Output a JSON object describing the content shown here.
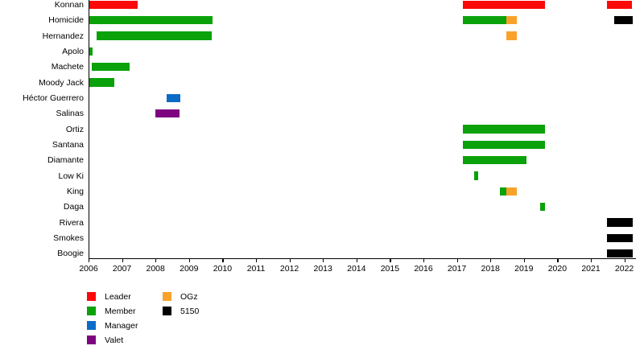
{
  "chart_data": {
    "type": "timeline",
    "title": "",
    "x_axis": {
      "start": 2006,
      "end": 2022,
      "tick_interval": 1,
      "tick_labels": [
        "2006",
        "2007",
        "2008",
        "2009",
        "2010",
        "2011",
        "2012",
        "2013",
        "2014",
        "2015",
        "2016",
        "2017",
        "2018",
        "2019",
        "2020",
        "2021",
        "2022"
      ]
    },
    "roles": {
      "leader": {
        "label": "Leader",
        "color": "#FB0909"
      },
      "member": {
        "label": "Member",
        "color": "#0AA10A"
      },
      "manager": {
        "label": "Manager",
        "color": "#0B6BC7"
      },
      "valet": {
        "label": "Valet",
        "color": "#7D0680"
      },
      "ogz": {
        "label": "OGz",
        "color": "#F9A22B"
      },
      "s5150": {
        "label": "5150",
        "color": "#000000"
      }
    },
    "legend_columns": [
      [
        "leader",
        "member",
        "manager",
        "valet"
      ],
      [
        "ogz",
        "s5150"
      ]
    ],
    "rows": [
      {
        "label": "Konnan",
        "segments": [
          {
            "role": "leader",
            "start": 2006.02,
            "end": 2007.47
          },
          {
            "role": "leader",
            "start": 2017.18,
            "end": 2019.63
          },
          {
            "role": "leader",
            "start": 2021.48,
            "end": 2022.22
          }
        ]
      },
      {
        "label": "Homicide",
        "segments": [
          {
            "role": "member",
            "start": 2006.02,
            "end": 2009.7
          },
          {
            "role": "member",
            "start": 2017.18,
            "end": 2018.48
          },
          {
            "role": "ogz",
            "start": 2018.48,
            "end": 2018.78
          },
          {
            "role": "s5150",
            "start": 2021.7,
            "end": 2022.25
          }
        ]
      },
      {
        "label": "Hernandez",
        "segments": [
          {
            "role": "member",
            "start": 2006.24,
            "end": 2009.68
          },
          {
            "role": "ogz",
            "start": 2018.48,
            "end": 2018.78
          }
        ]
      },
      {
        "label": "Apolo",
        "segments": [
          {
            "role": "member",
            "start": 2006.02,
            "end": 2006.13
          }
        ]
      },
      {
        "label": "Machete",
        "segments": [
          {
            "role": "member",
            "start": 2006.1,
            "end": 2007.23
          }
        ]
      },
      {
        "label": "Moody Jack",
        "segments": [
          {
            "role": "member",
            "start": 2006.02,
            "end": 2006.77
          }
        ]
      },
      {
        "label": "Héctor Guerrero",
        "segments": [
          {
            "role": "manager",
            "start": 2008.32,
            "end": 2008.74
          }
        ]
      },
      {
        "label": "Salinas",
        "segments": [
          {
            "role": "valet",
            "start": 2008.0,
            "end": 2008.71
          }
        ]
      },
      {
        "label": "Ortiz",
        "segments": [
          {
            "role": "member",
            "start": 2017.18,
            "end": 2019.63
          }
        ]
      },
      {
        "label": "Santana",
        "segments": [
          {
            "role": "member",
            "start": 2017.18,
            "end": 2019.63
          }
        ]
      },
      {
        "label": "Diamante",
        "segments": [
          {
            "role": "member",
            "start": 2017.18,
            "end": 2019.07
          }
        ]
      },
      {
        "label": "Low Ki",
        "segments": [
          {
            "role": "member",
            "start": 2017.52,
            "end": 2017.64
          }
        ]
      },
      {
        "label": "King",
        "segments": [
          {
            "role": "member",
            "start": 2018.28,
            "end": 2018.48
          },
          {
            "role": "ogz",
            "start": 2018.48,
            "end": 2018.8
          }
        ]
      },
      {
        "label": "Daga",
        "segments": [
          {
            "role": "member",
            "start": 2019.49,
            "end": 2019.63
          }
        ]
      },
      {
        "label": "Rivera",
        "segments": [
          {
            "role": "s5150",
            "start": 2021.48,
            "end": 2022.25
          }
        ]
      },
      {
        "label": "Smokes",
        "segments": [
          {
            "role": "s5150",
            "start": 2021.48,
            "end": 2022.25
          }
        ]
      },
      {
        "label": "Boogie",
        "segments": [
          {
            "role": "s5150",
            "start": 2021.48,
            "end": 2022.25
          }
        ]
      }
    ]
  }
}
